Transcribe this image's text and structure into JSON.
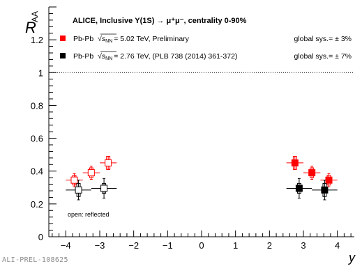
{
  "chart_data": {
    "type": "scatter",
    "title": "ALICE, Inclusive Υ(1S) → μ⁺μ⁻, centrality 0-90%",
    "ylabel_main": "R",
    "ylabel_sub": "AA",
    "xlabel": "y",
    "xlim": [
      -4.5,
      4.5
    ],
    "ylim": [
      0,
      1.4
    ],
    "xticks": [
      "−4",
      "−3",
      "−2",
      "−1",
      "0",
      "1",
      "2",
      "3",
      "4"
    ],
    "xtick_values": [
      -4,
      -3,
      -2,
      -1,
      0,
      1,
      2,
      3,
      4
    ],
    "yticks": [
      "0",
      "0.2",
      "0.4",
      "0.6",
      "0.8",
      "1",
      "1.2"
    ],
    "ytick_values": [
      0,
      0.2,
      0.4,
      0.6,
      0.8,
      1.0,
      1.2
    ],
    "reference_line": 1.0,
    "series": [
      {
        "name_prefix": "Pb-Pb",
        "sqrt_symbol": "s",
        "sqrt_sub": "NN",
        "name_suffix": "= 5.02 TeV, Preliminary",
        "global_sys": "global sys.= ± 3%",
        "color": "#ff0000",
        "points": [
          {
            "x": 2.75,
            "xerr": 0.25,
            "y": 0.45,
            "stat": 0.04,
            "sys": 0.04
          },
          {
            "x": 3.25,
            "xerr": 0.25,
            "y": 0.39,
            "stat": 0.04,
            "sys": 0.03
          },
          {
            "x": 3.75,
            "xerr": 0.25,
            "y": 0.345,
            "stat": 0.04,
            "sys": 0.03
          }
        ]
      },
      {
        "name_prefix": "Pb-Pb",
        "sqrt_symbol": "s",
        "sqrt_sub": "NN",
        "name_suffix": "= 2.76 TeV, (PLB 738 (2014) 361-372)",
        "global_sys": "global sys.= ± 7%",
        "color": "#000000",
        "points": [
          {
            "x": 2.875,
            "xerr": 0.375,
            "y": 0.295,
            "stat": 0.06,
            "sys": 0.03
          },
          {
            "x": 3.625,
            "xerr": 0.375,
            "y": 0.285,
            "stat": 0.06,
            "sys": 0.04
          }
        ]
      }
    ],
    "annotation": "open: reflected",
    "watermark": "ALI-PREL-108625"
  }
}
